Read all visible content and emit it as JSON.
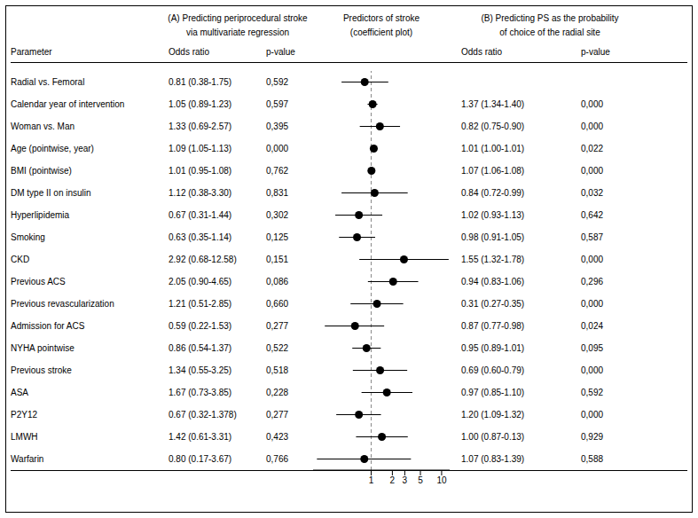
{
  "chart_data": {
    "type": "forest",
    "title": "Predictors of stroke",
    "subtitle": "(coefficient plot)",
    "categories": [
      "Radial vs. Femoral",
      "Calendar year of intervention",
      "Woman vs. Man",
      "Age (pointwise, year)",
      "BMI (pointwise)",
      "DM type II on insulin",
      "Hyperlipidemia",
      "Smoking",
      "CKD",
      "Previous ACS",
      "Previous revascularization",
      "Admission for ACS",
      "NYHA pointwise",
      "Previous stroke",
      "ASA",
      "P2Y12",
      "LMWH",
      "Warfarin"
    ],
    "values": [
      0.81,
      1.05,
      1.33,
      1.09,
      1.01,
      1.12,
      0.67,
      0.63,
      2.92,
      2.05,
      1.21,
      0.59,
      0.86,
      1.34,
      1.67,
      0.67,
      1.42,
      0.8
    ],
    "lower": [
      0.38,
      0.89,
      0.69,
      1.05,
      0.95,
      0.38,
      0.31,
      0.35,
      0.68,
      0.9,
      0.51,
      0.22,
      0.54,
      0.55,
      0.73,
      0.32,
      0.61,
      0.17
    ],
    "upper": [
      1.75,
      1.23,
      2.57,
      1.13,
      1.08,
      3.3,
      1.44,
      1.14,
      12.58,
      4.65,
      2.85,
      1.53,
      1.37,
      3.25,
      3.85,
      1.378,
      3.31,
      3.67
    ],
    "color": "#000000",
    "xlim": [
      0.15,
      13.0
    ],
    "xticks": [
      1,
      2,
      3,
      5,
      10
    ],
    "log": "x",
    "grid": false,
    "reference_x": 1,
    "table": {
      "category_header": "Parameter",
      "groups": [
        {
          "title": [
            "(A) Predicting periprocedural stroke",
            "via multivariate regression"
          ],
          "columns": [
            {
              "header": "Odds ratio",
              "values": [
                "0.81 (0.38-1.75)",
                "1.05 (0.89-1.23)",
                "1.33 (0.69-2.57)",
                "1.09 (1.05-1.13)",
                "1.01 (0.95-1.08)",
                "1.12 (0.38-3.30)",
                "0.67 (0.31-1.44)",
                "0.63 (0.35-1.14)",
                "2.92 (0.68-12.58)",
                "2.05 (0.90-4.65)",
                "1.21 (0.51-2.85)",
                "0.59 (0.22-1.53)",
                "0.86 (0.54-1.37)",
                "1.34 (0.55-3.25)",
                "1.67 (0.73-3.85)",
                "0.67 (0.32-1.378)",
                "1.42 (0.61-3.31)",
                "0.80 (0.17-3.67)"
              ]
            },
            {
              "header": "p-value",
              "values": [
                "0,592",
                "0,597",
                "0,395",
                "0,000",
                "0,762",
                "0,831",
                "0,302",
                "0,125",
                "0,151",
                "0,086",
                "0,660",
                "0,277",
                "0,522",
                "0,518",
                "0,228",
                "0,277",
                "0,423",
                "0,766"
              ]
            }
          ]
        },
        {
          "title": [
            "(B) Predicting PS as the probability",
            "of choice of the radial site"
          ],
          "columns": [
            {
              "header": "Odds ratio",
              "values": [
                null,
                "1.37 (1.34-1.40)",
                "0.82 (0.75-0.90)",
                "1.01 (1.00-1.01)",
                "1.07 (1.06-1.08)",
                "0.84 (0.72-0.99)",
                "1.02 (0.93-1.13)",
                "0.98 (0.91-1.05)",
                "1.55 (1.32-1.78)",
                "0.94 (0.83-1.06)",
                "0.31 (0.27-0.35)",
                "0.87 (0.77-0.98)",
                "0.95 (0.89-1.01)",
                "0.69 (0.60-0.79)",
                "0.97 (0.85-1.10)",
                "1.20 (1.09-1.32)",
                "1.00 (0.87-0.13)",
                "1.07 (0.83-1.39)"
              ]
            },
            {
              "header": "p-value",
              "values": [
                null,
                "0,000",
                "0,000",
                "0,022",
                "0,000",
                "0,032",
                "0,642",
                "0,587",
                "0,000",
                "0,296",
                "0,000",
                "0,024",
                "0,095",
                "0,000",
                "0,592",
                "0,000",
                "0,929",
                "0,588"
              ]
            }
          ]
        }
      ]
    }
  }
}
